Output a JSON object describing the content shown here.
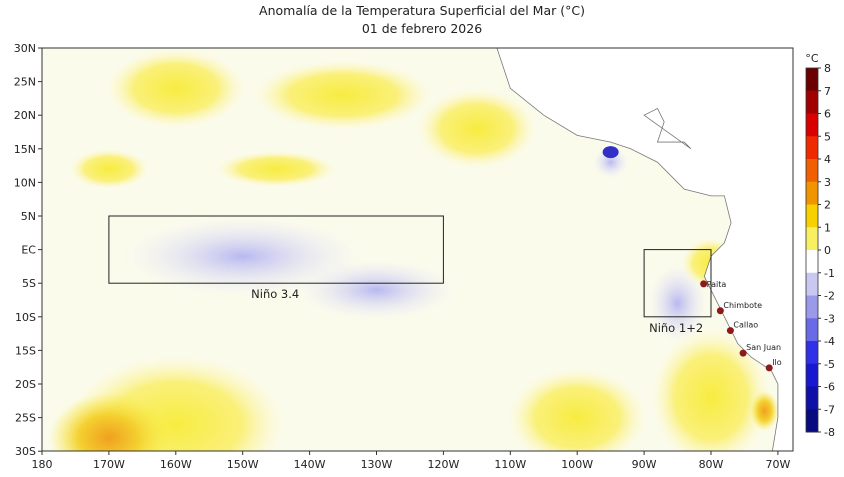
{
  "title": "Anomalía de la Temperatura Superficial del Mar (°C)",
  "subtitle": "01 de febrero 2026",
  "map": {
    "lon_ticks": [
      "180",
      "170W",
      "160W",
      "150W",
      "140W",
      "130W",
      "120W",
      "110W",
      "100W",
      "90W",
      "80W",
      "70W"
    ],
    "lat_ticks": [
      "30N",
      "25N",
      "20N",
      "15N",
      "10N",
      "5N",
      "EC",
      "5S",
      "10S",
      "15S",
      "20S",
      "25S",
      "30S"
    ],
    "regions": [
      {
        "label": "Niño 3.4",
        "lon": [
          -170,
          -120
        ],
        "lat": [
          -5,
          5
        ]
      },
      {
        "label": "Niño 1+2",
        "lon": [
          -90,
          -80
        ],
        "lat": [
          -10,
          0
        ]
      }
    ],
    "cities": [
      {
        "name": "Paita",
        "lon": -81.1,
        "lat": -5.1
      },
      {
        "name": "Chimbote",
        "lon": -78.6,
        "lat": -9.1
      },
      {
        "name": "Callao",
        "lon": -77.1,
        "lat": -12.05
      },
      {
        "name": "San Juan",
        "lon": -75.2,
        "lat": -15.4
      },
      {
        "name": "Ilo",
        "lon": -71.3,
        "lat": -17.6
      }
    ],
    "city_color": "#8b1a1a"
  },
  "colorbar": {
    "unit": "°C",
    "ticks": [
      "8",
      "7",
      "6",
      "5",
      "4",
      "3",
      "2",
      "1",
      "0",
      "-1",
      "-2",
      "-3",
      "-4",
      "-5",
      "-6",
      "-7",
      "-8"
    ],
    "range": [
      -8,
      8
    ],
    "colors": [
      "#0a0a7a",
      "#1010c8",
      "#2a2af0",
      "#6a6ae0",
      "#a8a8ee",
      "#e6e6f8",
      "#ffffff",
      "#fbfbc0",
      "#f8f020",
      "#f0b000",
      "#f07800",
      "#f03000",
      "#c80000",
      "#6a0000"
    ]
  }
}
